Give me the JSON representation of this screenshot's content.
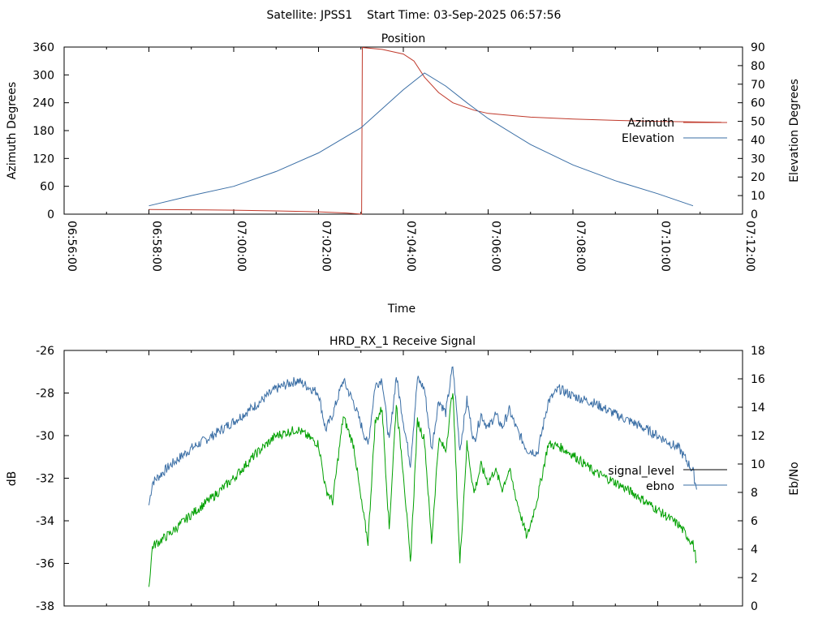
{
  "header": {
    "text": "Satellite: JPSS1    Start Time: 03-Sep-2025 06:57:56"
  },
  "chart_data": [
    {
      "type": "line",
      "title": "Position",
      "xlabel": "Time",
      "ylabel": "Azimuth Degrees",
      "y2label": "Elevation Degrees",
      "x_ticks": [
        "06:56:00",
        "06:58:00",
        "07:00:00",
        "07:02:00",
        "07:04:00",
        "07:06:00",
        "07:08:00",
        "07:10:00",
        "07:12:00"
      ],
      "y_ticks": [
        "0",
        "60",
        "120",
        "180",
        "240",
        "300",
        "360"
      ],
      "y2_ticks": [
        "0",
        "10",
        "20",
        "30",
        "40",
        "50",
        "60",
        "70",
        "80",
        "90"
      ],
      "ylim": [
        0,
        360
      ],
      "y2lim": [
        0,
        90
      ],
      "xlim": [
        "06:56:00",
        "07:12:00"
      ],
      "grid": false,
      "legend_position": "right",
      "series": [
        {
          "name": "Azimuth",
          "axis": "y",
          "color": "#c0392b",
          "points": [
            [
              "06:58:00",
              10
            ],
            [
              "06:59:00",
              9.5
            ],
            [
              "07:00:00",
              8.5
            ],
            [
              "07:01:00",
              7
            ],
            [
              "07:02:00",
              5
            ],
            [
              "07:02:40",
              2.5
            ],
            [
              "07:03:01",
              0
            ],
            [
              "07:03:02",
              359
            ],
            [
              "07:03:30",
              355
            ],
            [
              "07:04:00",
              345
            ],
            [
              "07:04:15",
              330
            ],
            [
              "07:04:30",
              295
            ],
            [
              "07:04:50",
              262
            ],
            [
              "07:05:10",
              240
            ],
            [
              "07:05:40",
              224
            ],
            [
              "07:06:00",
              217
            ],
            [
              "07:06:30",
              213
            ],
            [
              "07:07:00",
              209
            ],
            [
              "07:08:00",
              205
            ],
            [
              "07:09:00",
              202
            ],
            [
              "07:10:00",
              200
            ],
            [
              "07:11:00",
              198.5
            ],
            [
              "07:11:30",
              198
            ]
          ]
        },
        {
          "name": "Elevation",
          "axis": "y2",
          "color": "#3a6ea5",
          "points": [
            [
              "06:58:00",
              4.5
            ],
            [
              "06:59:00",
              10
            ],
            [
              "07:00:00",
              15
            ],
            [
              "07:01:00",
              23
            ],
            [
              "07:02:00",
              33
            ],
            [
              "07:03:00",
              46.5
            ],
            [
              "07:04:00",
              67
            ],
            [
              "07:04:30",
              76
            ],
            [
              "07:05:00",
              69
            ],
            [
              "07:05:30",
              60
            ],
            [
              "07:06:00",
              51.5
            ],
            [
              "07:07:00",
              37.5
            ],
            [
              "07:08:00",
              26.5
            ],
            [
              "07:09:00",
              18
            ],
            [
              "07:10:00",
              11
            ],
            [
              "07:10:50",
              4.5
            ]
          ]
        }
      ]
    },
    {
      "type": "line",
      "title": "HRD_RX_1 Receive Signal",
      "xlabel": "",
      "ylabel": "dB",
      "y2label": "Eb/No",
      "y_ticks": [
        "-26",
        "-28",
        "-30",
        "-32",
        "-34",
        "-36",
        "-38"
      ],
      "y2_ticks": [
        "18",
        "16",
        "14",
        "12",
        "10",
        "8",
        "6",
        "4",
        "2",
        "0"
      ],
      "ylim": [
        -38,
        -26
      ],
      "y2lim": [
        0,
        18
      ],
      "xlim": [
        "06:56:00",
        "07:12:00"
      ],
      "grid": false,
      "legend_position": "right",
      "series": [
        {
          "name": "signal_level",
          "axis": "y",
          "color": "#000000",
          "points": []
        },
        {
          "name": "ebno",
          "axis": "y2",
          "color": "#3a6ea5",
          "points": [
            [
              "06:58:00",
              7.1
            ],
            [
              "06:58:05",
              8.7
            ],
            [
              "06:58:30",
              9.9
            ],
            [
              "06:59:00",
              11.1
            ],
            [
              "06:59:30",
              12.0
            ],
            [
              "07:00:00",
              13.0
            ],
            [
              "07:00:30",
              14.1
            ],
            [
              "07:01:00",
              15.3
            ],
            [
              "07:01:30",
              15.9
            ],
            [
              "07:02:00",
              15.0
            ],
            [
              "07:02:10",
              12.4
            ],
            [
              "07:02:20",
              13.5
            ],
            [
              "07:02:35",
              15.9
            ],
            [
              "07:02:50",
              14.3
            ],
            [
              "07:03:00",
              12.8
            ],
            [
              "07:03:10",
              11.3
            ],
            [
              "07:03:20",
              15.5
            ],
            [
              "07:03:30",
              16.0
            ],
            [
              "07:03:40",
              11.5
            ],
            [
              "07:03:50",
              16.2
            ],
            [
              "07:04:00",
              13.0
            ],
            [
              "07:04:10",
              10.0
            ],
            [
              "07:04:20",
              16.0
            ],
            [
              "07:04:30",
              15.3
            ],
            [
              "07:04:40",
              11.0
            ],
            [
              "07:04:50",
              14.5
            ],
            [
              "07:05:00",
              13.6
            ],
            [
              "07:05:10",
              16.9
            ],
            [
              "07:05:20",
              11.0
            ],
            [
              "07:05:30",
              14.5
            ],
            [
              "07:05:40",
              11.5
            ],
            [
              "07:05:50",
              13.5
            ],
            [
              "07:06:00",
              12.5
            ],
            [
              "07:06:10",
              13.5
            ],
            [
              "07:06:20",
              12.6
            ],
            [
              "07:06:30",
              13.8
            ],
            [
              "07:06:40",
              12.5
            ],
            [
              "07:06:55",
              11.0
            ],
            [
              "07:07:10",
              10.8
            ],
            [
              "07:07:25",
              14.4
            ],
            [
              "07:07:40",
              15.3
            ],
            [
              "07:08:00",
              14.8
            ],
            [
              "07:08:30",
              14.3
            ],
            [
              "07:09:00",
              13.5
            ],
            [
              "07:09:30",
              12.8
            ],
            [
              "07:10:00",
              12.0
            ],
            [
              "07:10:30",
              11.1
            ],
            [
              "07:10:50",
              9.5
            ],
            [
              "07:10:55",
              8.2
            ]
          ]
        },
        {
          "name": "",
          "axis": "y",
          "color": "#00a000",
          "points": [
            [
              "06:58:00",
              -37.1
            ],
            [
              "06:58:05",
              -35.2
            ],
            [
              "06:58:30",
              -34.6
            ],
            [
              "06:59:00",
              -33.7
            ],
            [
              "06:59:30",
              -32.9
            ],
            [
              "07:00:00",
              -32.0
            ],
            [
              "07:00:30",
              -30.9
            ],
            [
              "07:01:00",
              -30.0
            ],
            [
              "07:01:30",
              -29.7
            ],
            [
              "07:02:00",
              -30.4
            ],
            [
              "07:02:10",
              -32.5
            ],
            [
              "07:02:20",
              -33.1
            ],
            [
              "07:02:35",
              -29.1
            ],
            [
              "07:02:50",
              -30.5
            ],
            [
              "07:03:00",
              -33.0
            ],
            [
              "07:03:10",
              -35.0
            ],
            [
              "07:03:20",
              -29.4
            ],
            [
              "07:03:30",
              -28.7
            ],
            [
              "07:03:40",
              -34.4
            ],
            [
              "07:03:50",
              -28.5
            ],
            [
              "07:04:00",
              -31.7
            ],
            [
              "07:04:10",
              -36.0
            ],
            [
              "07:04:20",
              -29.3
            ],
            [
              "07:04:30",
              -30.2
            ],
            [
              "07:04:40",
              -35.0
            ],
            [
              "07:04:50",
              -30.2
            ],
            [
              "07:05:00",
              -30.7
            ],
            [
              "07:05:10",
              -27.8
            ],
            [
              "07:05:20",
              -36.0
            ],
            [
              "07:05:30",
              -30.4
            ],
            [
              "07:05:40",
              -32.7
            ],
            [
              "07:05:50",
              -31.4
            ],
            [
              "07:06:00",
              -32.2
            ],
            [
              "07:06:10",
              -31.6
            ],
            [
              "07:06:20",
              -32.5
            ],
            [
              "07:06:30",
              -31.6
            ],
            [
              "07:06:40",
              -33.0
            ],
            [
              "07:06:55",
              -34.8
            ],
            [
              "07:07:10",
              -32.9
            ],
            [
              "07:07:25",
              -30.4
            ],
            [
              "07:07:40",
              -30.5
            ],
            [
              "07:08:00",
              -30.9
            ],
            [
              "07:08:30",
              -31.7
            ],
            [
              "07:09:00",
              -32.2
            ],
            [
              "07:09:30",
              -32.8
            ],
            [
              "07:10:00",
              -33.5
            ],
            [
              "07:10:30",
              -34.2
            ],
            [
              "07:10:50",
              -35.1
            ],
            [
              "07:10:55",
              -35.9
            ]
          ]
        }
      ]
    }
  ]
}
